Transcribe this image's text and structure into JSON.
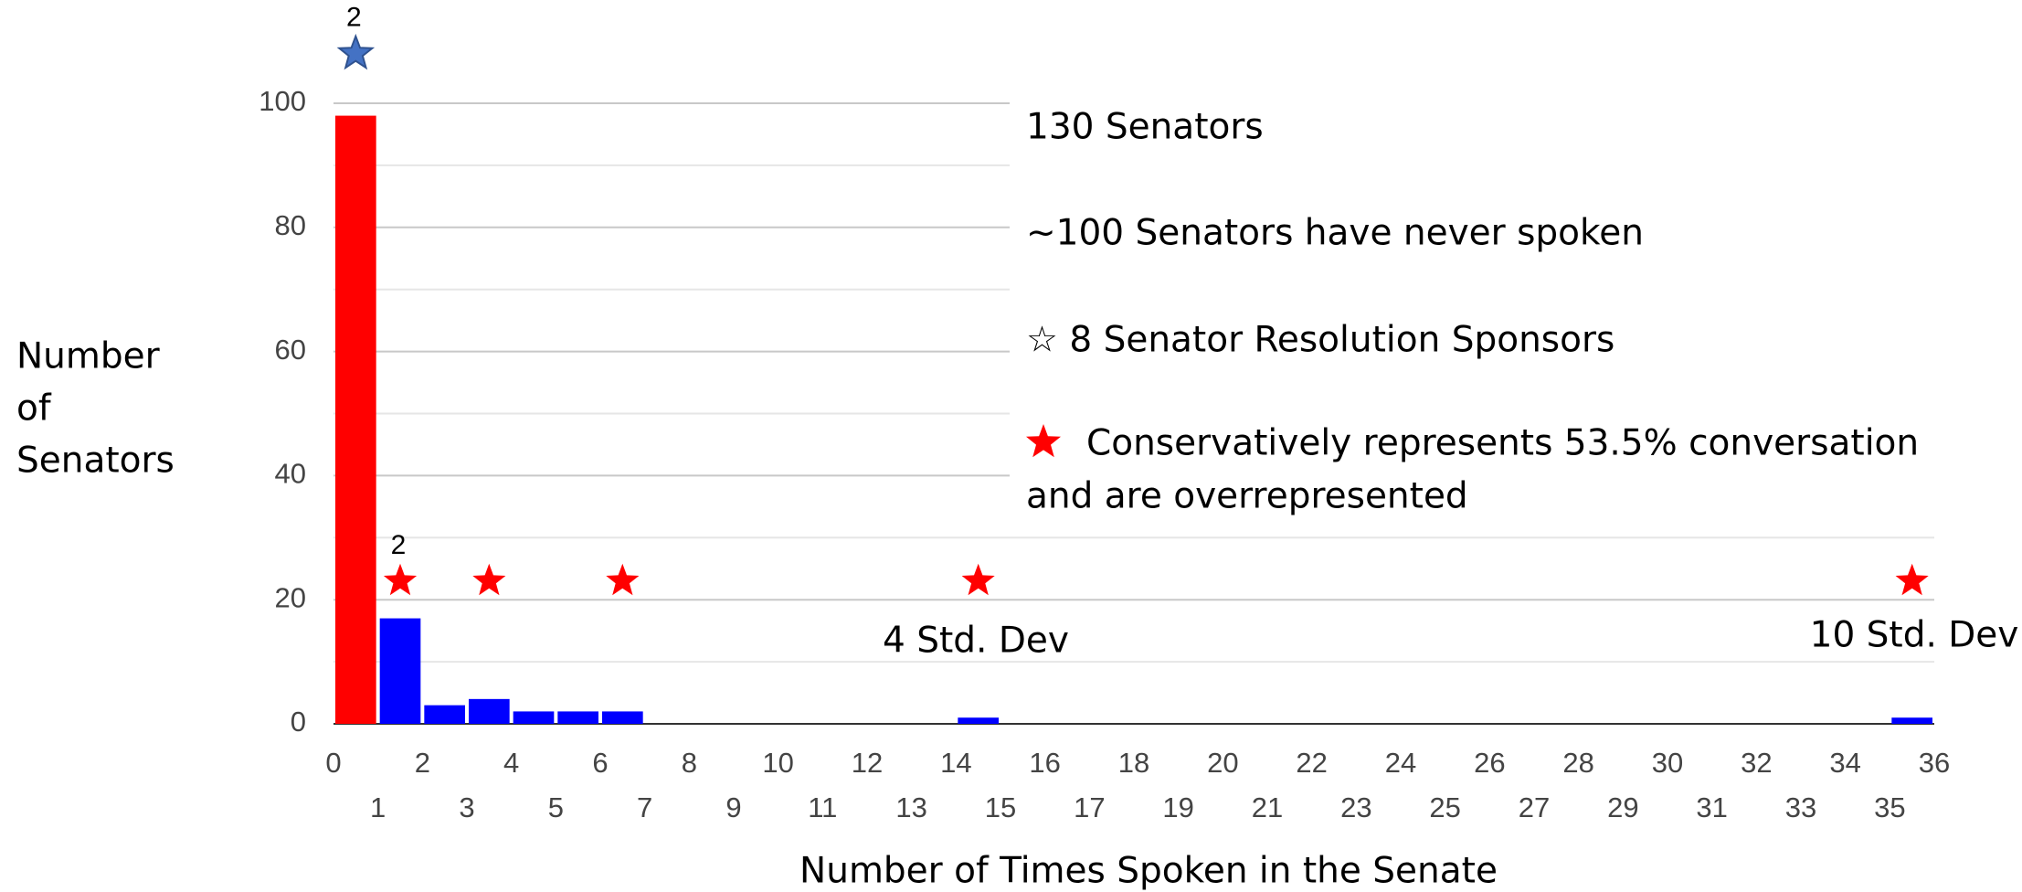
{
  "chart_data": {
    "type": "histogram",
    "bins": [
      0,
      1,
      2,
      3,
      4,
      5,
      6,
      7,
      8,
      9,
      10,
      11,
      12,
      13,
      14,
      15,
      16,
      17,
      18,
      19,
      20,
      21,
      22,
      23,
      24,
      25,
      26,
      27,
      28,
      29,
      30,
      31,
      32,
      33,
      34,
      35,
      36
    ],
    "values": [
      98,
      17,
      3,
      4,
      2,
      2,
      2,
      0,
      0,
      0,
      0,
      0,
      0,
      0,
      1,
      0,
      0,
      0,
      0,
      0,
      0,
      0,
      0,
      0,
      0,
      0,
      0,
      0,
      0,
      0,
      0,
      0,
      0,
      0,
      0,
      1
    ],
    "colors": [
      "#ff0000",
      "#0000ff",
      "#0000ff",
      "#0000ff",
      "#0000ff",
      "#0000ff",
      "#0000ff",
      "#0000ff",
      "#0000ff",
      "#0000ff",
      "#0000ff",
      "#0000ff",
      "#0000ff",
      "#0000ff",
      "#0000ff",
      "#0000ff",
      "#0000ff",
      "#0000ff",
      "#0000ff",
      "#0000ff",
      "#0000ff",
      "#0000ff",
      "#0000ff",
      "#0000ff",
      "#0000ff",
      "#0000ff",
      "#0000ff",
      "#0000ff",
      "#0000ff",
      "#0000ff",
      "#0000ff",
      "#0000ff",
      "#0000ff",
      "#0000ff",
      "#0000ff",
      "#0000ff"
    ],
    "xlim": [
      0,
      36
    ],
    "xticks": [
      0,
      1,
      2,
      3,
      4,
      5,
      6,
      7,
      8,
      9,
      10,
      11,
      12,
      13,
      14,
      15,
      16,
      17,
      18,
      19,
      20,
      21,
      22,
      23,
      24,
      25,
      26,
      27,
      28,
      29,
      30,
      31,
      32,
      33,
      34,
      35,
      36
    ],
    "ylim": [
      0,
      100
    ],
    "yticks": [
      0,
      20,
      40,
      60,
      80,
      100
    ],
    "y_minor_ticks": [
      10,
      30,
      50,
      70,
      90
    ],
    "grid": true,
    "x_label": "Number of Times Spoken in the Senate",
    "y_label": [
      "Number",
      "of",
      "Senators"
    ],
    "markers": [
      {
        "x": 0.5,
        "y": 108,
        "color": "#4472c4",
        "label": "2"
      },
      {
        "x": 1.5,
        "y": 23,
        "color": "#ff0000",
        "label": "2"
      },
      {
        "x": 3.5,
        "y": 23,
        "color": "#ff0000"
      },
      {
        "x": 6.5,
        "y": 23,
        "color": "#ff0000"
      },
      {
        "x": 14.5,
        "y": 23,
        "color": "#ff0000"
      },
      {
        "x": 35.5,
        "y": 23,
        "color": "#ff0000"
      }
    ],
    "annotations": [
      "130 Senators",
      "~100 Senators have never spoken",
      "☆ 8 Senator Resolution Sponsors",
      "Conservatively represents 53.5% conversation",
      "and are overrepresented",
      "4 Std. Dev",
      "10 Std. Dev"
    ]
  }
}
